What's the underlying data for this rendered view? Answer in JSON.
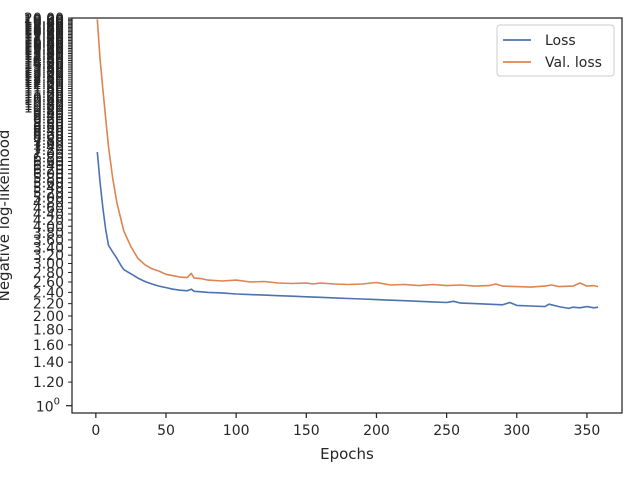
{
  "chart_data": {
    "type": "line",
    "title": "",
    "xlabel": "Epochs",
    "ylabel": "Negative log-likelihood",
    "y_scale": "log",
    "grid": false,
    "legend_position": "top-right",
    "xlim": [
      -17,
      375
    ],
    "ylim": [
      0.945,
      20
    ],
    "x_ticks": [
      0,
      50,
      100,
      150,
      200,
      250,
      300,
      350
    ],
    "x_tick_labels": [
      "0",
      "50",
      "100",
      "150",
      "200",
      "250",
      "300",
      "350"
    ],
    "y_ticks": [
      1.2,
      1.4,
      1.6,
      1.8,
      2.0,
      2.2,
      2.4,
      2.6,
      2.8,
      3.0,
      3.2,
      3.4,
      3.6,
      3.8,
      4.0,
      4.2,
      4.4,
      4.6,
      4.8,
      5.0,
      5.2,
      5.4,
      5.6,
      5.8,
      6.0,
      6.2,
      6.4,
      6.6,
      6.8,
      7.0,
      7.2,
      7.4,
      7.6,
      7.8,
      8.0,
      8.2,
      8.4,
      8.6,
      8.8,
      9.0,
      9.2,
      9.4,
      9.6,
      9.8,
      10.0,
      10.2,
      10.4,
      10.6,
      10.8,
      11.0,
      11.2,
      11.4,
      11.6,
      11.8,
      12.0,
      12.2,
      12.4,
      12.6,
      12.8,
      13.0,
      13.2,
      13.4,
      13.6,
      13.8,
      14.0,
      14.2,
      14.4,
      14.6,
      14.8,
      15.0,
      15.2,
      15.4,
      15.6,
      15.8,
      16.0,
      16.2,
      16.4,
      16.6,
      16.8,
      17.0,
      17.2,
      17.4,
      17.6,
      17.8,
      18.0,
      18.2,
      18.4,
      18.6,
      18.8,
      19.0,
      19.2,
      19.4,
      19.6,
      19.8,
      20.0
    ],
    "y_tick_labels": [
      "1.20",
      "1.40",
      "1.60",
      "1.80",
      "2.00",
      "2.20",
      "2.40",
      "2.60",
      "2.80",
      "3.00",
      "3.20",
      "3.40",
      "3.60",
      "3.80",
      "4.00",
      "4.20",
      "4.40",
      "4.60",
      "4.80",
      "5.00",
      "5.20",
      "5.40",
      "5.60",
      "5.80",
      "6.00",
      "6.20",
      "6.40",
      "6.60",
      "6.80",
      "7.00",
      "7.20",
      "7.40",
      "7.60",
      "7.80",
      "8.00",
      "8.20",
      "8.40",
      "8.60",
      "8.80",
      "9.00",
      "9.20",
      "9.40",
      "9.60",
      "9.80",
      "10.00",
      "10.20",
      "10.40",
      "10.60",
      "10.80",
      "11.00",
      "11.20",
      "11.40",
      "11.60",
      "11.80",
      "12.00",
      "12.20",
      "12.40",
      "12.60",
      "12.80",
      "13.00",
      "13.20",
      "13.40",
      "13.60",
      "13.80",
      "14.00",
      "14.20",
      "14.40",
      "14.60",
      "14.80",
      "15.00",
      "15.20",
      "15.40",
      "15.60",
      "15.80",
      "16.00",
      "16.20",
      "16.40",
      "16.60",
      "16.80",
      "17.00",
      "17.20",
      "17.40",
      "17.60",
      "17.80",
      "18.00",
      "18.20",
      "18.40",
      "18.60",
      "18.80",
      "19.00",
      "19.20",
      "19.40",
      "19.60",
      "19.80",
      "20.00"
    ],
    "y_major_tick": {
      "value": 1,
      "base": "10",
      "exponent": "0"
    },
    "series": [
      {
        "name": "Loss",
        "color": "#4c72b0",
        "x": [
          1,
          3,
          5,
          7,
          9,
          12,
          15,
          18,
          20,
          25,
          30,
          35,
          40,
          45,
          50,
          55,
          60,
          65,
          68,
          70,
          75,
          80,
          90,
          100,
          110,
          120,
          130,
          140,
          150,
          160,
          170,
          180,
          190,
          200,
          210,
          220,
          230,
          240,
          250,
          255,
          260,
          270,
          280,
          290,
          295,
          300,
          310,
          320,
          323,
          330,
          337,
          340,
          345,
          350,
          355,
          358
        ],
        "y": [
          7.1,
          5.6,
          4.6,
          3.9,
          3.45,
          3.28,
          3.12,
          2.95,
          2.86,
          2.77,
          2.68,
          2.61,
          2.56,
          2.52,
          2.49,
          2.46,
          2.44,
          2.43,
          2.46,
          2.42,
          2.41,
          2.4,
          2.39,
          2.37,
          2.36,
          2.35,
          2.34,
          2.33,
          2.32,
          2.31,
          2.3,
          2.29,
          2.28,
          2.27,
          2.26,
          2.25,
          2.24,
          2.23,
          2.22,
          2.24,
          2.21,
          2.2,
          2.19,
          2.18,
          2.22,
          2.17,
          2.16,
          2.15,
          2.19,
          2.15,
          2.12,
          2.14,
          2.13,
          2.15,
          2.13,
          2.14
        ]
      },
      {
        "name": "Val. loss",
        "color": "#dd8452",
        "x": [
          1,
          3,
          5,
          7,
          9,
          12,
          15,
          18,
          20,
          25,
          30,
          35,
          40,
          45,
          50,
          55,
          60,
          65,
          68,
          70,
          75,
          80,
          90,
          100,
          110,
          120,
          130,
          140,
          150,
          155,
          160,
          170,
          180,
          190,
          200,
          210,
          220,
          230,
          240,
          250,
          260,
          270,
          280,
          285,
          290,
          300,
          310,
          320,
          325,
          330,
          340,
          345,
          350,
          355,
          358
        ],
        "y": [
          19.8,
          14.5,
          11.5,
          9.2,
          7.4,
          5.8,
          4.8,
          4.2,
          3.85,
          3.42,
          3.12,
          2.97,
          2.88,
          2.83,
          2.76,
          2.73,
          2.7,
          2.69,
          2.78,
          2.68,
          2.67,
          2.64,
          2.62,
          2.64,
          2.6,
          2.61,
          2.58,
          2.57,
          2.58,
          2.56,
          2.58,
          2.56,
          2.55,
          2.56,
          2.59,
          2.54,
          2.55,
          2.53,
          2.55,
          2.53,
          2.54,
          2.52,
          2.53,
          2.56,
          2.52,
          2.51,
          2.5,
          2.52,
          2.54,
          2.51,
          2.52,
          2.58,
          2.52,
          2.53,
          2.51
        ]
      }
    ]
  }
}
